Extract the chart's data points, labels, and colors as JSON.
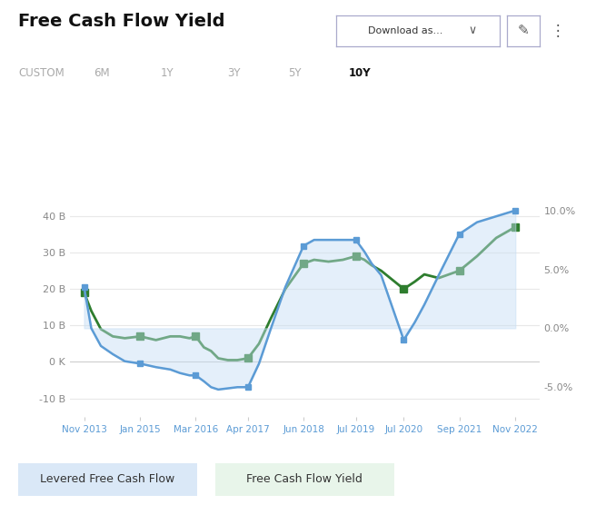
{
  "title": "Free Cash Flow Yield",
  "tab_labels": [
    "CUSTOM",
    "6M",
    "1Y",
    "3Y",
    "5Y",
    "10Y"
  ],
  "active_tab": "10Y",
  "x_labels": [
    "Nov 2013",
    "Jan 2015",
    "Mar 2016",
    "Apr 2017",
    "Jun 2018",
    "Jul 2019",
    "Jul 2020",
    "Sep 2021",
    "Nov 2022"
  ],
  "x_positions": [
    0,
    1.17,
    2.33,
    3.42,
    4.58,
    5.67,
    6.67,
    7.83,
    9.0
  ],
  "fcf_x": [
    0.0,
    0.15,
    0.35,
    0.6,
    0.85,
    1.17,
    1.5,
    1.8,
    2.0,
    2.2,
    2.33,
    2.5,
    2.65,
    2.8,
    3.0,
    3.2,
    3.42,
    3.65,
    3.9,
    4.2,
    4.58,
    4.8,
    5.1,
    5.4,
    5.67,
    5.85,
    6.0,
    6.2,
    6.67,
    6.9,
    7.1,
    7.4,
    7.83,
    8.2,
    8.6,
    9.0
  ],
  "fcf_y": [
    19,
    14,
    9,
    7,
    6.5,
    7,
    6,
    7,
    7,
    6.5,
    7,
    4,
    3,
    1,
    0.5,
    0.5,
    1,
    5,
    12,
    20,
    27,
    28,
    27.5,
    28,
    29,
    28,
    26.5,
    25,
    20,
    22,
    24,
    23,
    25,
    29,
    34,
    37
  ],
  "yield_x": [
    0.0,
    0.15,
    0.35,
    0.6,
    0.85,
    1.17,
    1.5,
    1.8,
    2.0,
    2.2,
    2.33,
    2.5,
    2.65,
    2.8,
    3.0,
    3.2,
    3.42,
    3.65,
    3.9,
    4.2,
    4.58,
    4.8,
    5.1,
    5.4,
    5.67,
    5.85,
    6.0,
    6.2,
    6.67,
    6.9,
    7.1,
    7.4,
    7.83,
    8.2,
    8.6,
    9.0
  ],
  "yield_y": [
    3.5,
    0.0,
    -1.5,
    -2.2,
    -2.8,
    -3.0,
    -3.3,
    -3.5,
    -3.8,
    -4.0,
    -4.0,
    -4.5,
    -5.0,
    -5.2,
    -5.1,
    -5.0,
    -5.0,
    -3.0,
    0.0,
    3.5,
    7.0,
    7.5,
    7.5,
    7.5,
    7.5,
    6.5,
    5.5,
    4.5,
    -1.0,
    0.5,
    2.0,
    4.5,
    8.0,
    9.0,
    9.5,
    10.0
  ],
  "fcf_marker_x": [
    0.0,
    1.17,
    2.33,
    3.42,
    4.58,
    5.67,
    6.67,
    7.83,
    9.0
  ],
  "fcf_marker_y": [
    19,
    7,
    7,
    1,
    27,
    29,
    20,
    25,
    37
  ],
  "yield_marker_x": [
    0.0,
    1.17,
    2.33,
    3.42,
    4.58,
    5.67,
    6.67,
    7.83,
    9.0
  ],
  "yield_marker_y": [
    3.5,
    -3.0,
    -4.0,
    -5.0,
    7.0,
    7.5,
    -1.0,
    8.0,
    10.0
  ],
  "left_ylim": [
    -15,
    48
  ],
  "right_ylim": [
    -7.5,
    12
  ],
  "left_yticks": [
    -10,
    0,
    10,
    20,
    30,
    40
  ],
  "left_yticklabels": [
    "-10 B",
    "0 K",
    "10 B",
    "20 B",
    "30 B",
    "40 B"
  ],
  "right_yticks": [
    -5.0,
    0.0,
    5.0,
    10.0
  ],
  "right_yticklabels": [
    "-5.0%",
    "0.0%",
    "5.0%",
    "10.0%"
  ],
  "fcf_color": "#2e7d2e",
  "fcf_marker_color": "#2e7d2e",
  "yield_line_color": "#5b9bd5",
  "yield_fill_color": "#c5ddf4",
  "yield_marker_color": "#5b9bd5",
  "background_color": "#ffffff",
  "grid_color": "#e8e8e8",
  "tick_label_color": "#888888",
  "x_label_color": "#5b9bd5",
  "legend1_text": "Levered Free Cash Flow",
  "legend2_text": "Free Cash Flow Yield",
  "legend1_bg": "#dae8f7",
  "legend2_bg": "#e8f5ea"
}
